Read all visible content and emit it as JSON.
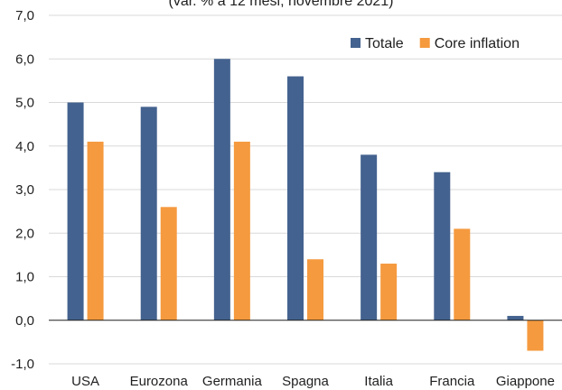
{
  "chart_data": {
    "type": "bar",
    "subtitle": "(var. % a 12 mesi, novembre 2021)",
    "categories": [
      "USA",
      "Eurozona",
      "Germania",
      "Spagna",
      "Italia",
      "Francia",
      "Giappone"
    ],
    "series": [
      {
        "name": "Totale",
        "color": "#44628f",
        "values": [
          5.0,
          4.9,
          6.0,
          5.6,
          3.8,
          3.4,
          0.1
        ]
      },
      {
        "name": "Core inflation",
        "color": "#f59a3f",
        "values": [
          4.1,
          2.6,
          4.1,
          1.4,
          1.3,
          2.1,
          -0.7
        ]
      }
    ],
    "ylim": [
      -1,
      7
    ],
    "yticks": [
      "-1,0",
      "0,0",
      "1,0",
      "2,0",
      "3,0",
      "4,0",
      "5,0",
      "6,0",
      "7,0"
    ],
    "grid": true,
    "legend_position": "top-right"
  }
}
